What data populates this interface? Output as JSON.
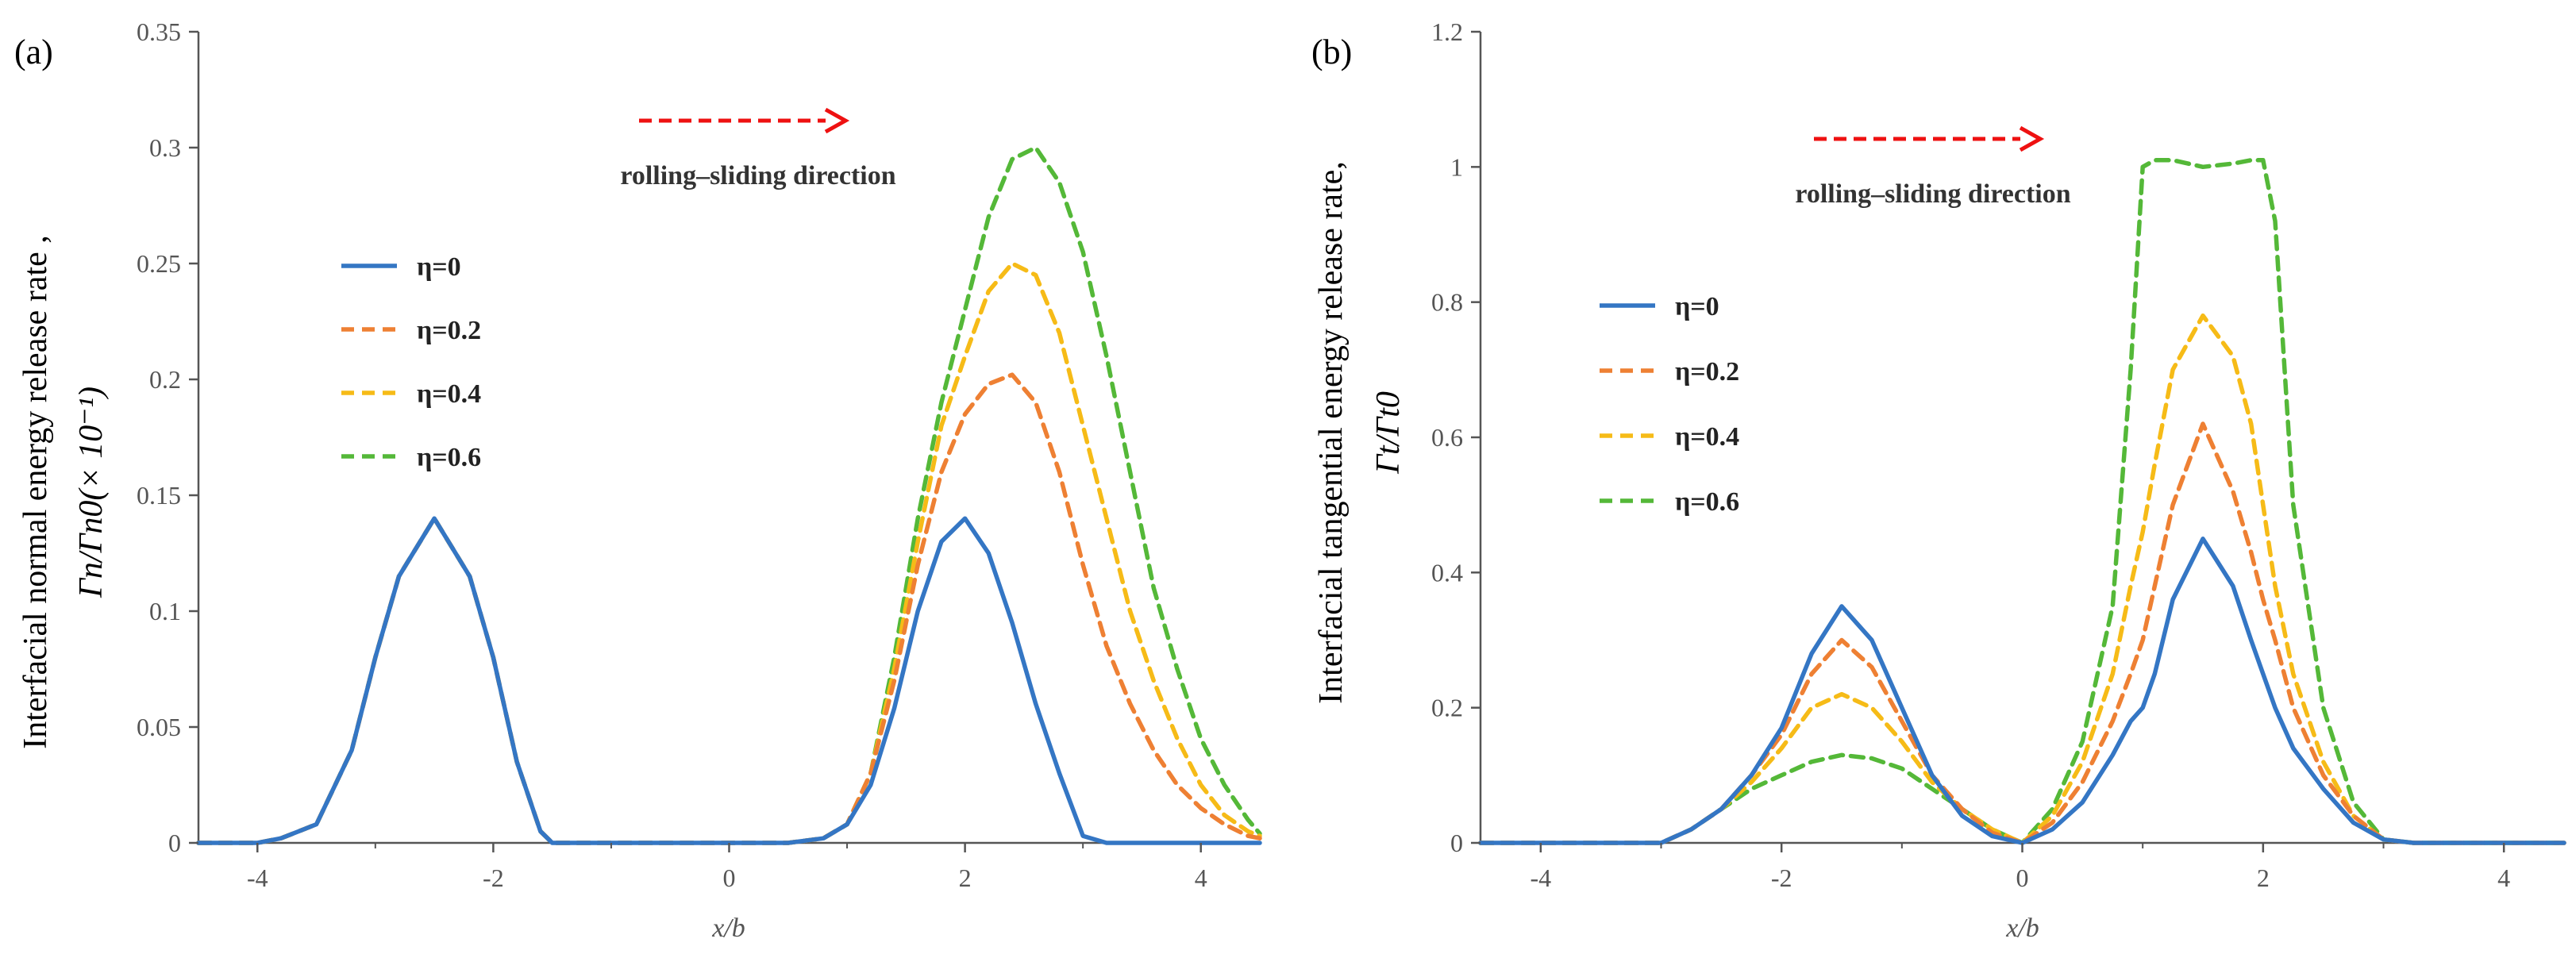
{
  "chart_data": [
    {
      "type": "line",
      "panel_label": "(a)",
      "ylabel_line1": "Interfacial normal energy release  rate ,",
      "ylabel_line2": "Γn/Γn0(× 10⁻¹)",
      "xlabel": "x/b",
      "xlim": [
        -4.5,
        4.5
      ],
      "ylim": [
        0,
        0.35
      ],
      "xticks": [
        -4,
        -2,
        0,
        2,
        4
      ],
      "xtick_labels": [
        "-4",
        "-2",
        "0",
        "2",
        "4"
      ],
      "yticks": [
        0,
        0.05,
        0.1,
        0.15,
        0.2,
        0.25,
        0.3,
        0.35
      ],
      "ytick_labels": [
        "0",
        "0.05",
        "0.1",
        "0.15",
        "0.2",
        "0.25",
        "0.3",
        "0.35"
      ],
      "annotation": "rolling–sliding direction",
      "legend_position": "upper-left",
      "x": [
        -4.5,
        -4.0,
        -3.8,
        -3.5,
        -3.2,
        -3.0,
        -2.8,
        -2.5,
        -2.2,
        -2.0,
        -1.8,
        -1.6,
        -1.5,
        -1.0,
        -0.5,
        0.0,
        0.5,
        0.8,
        1.0,
        1.2,
        1.4,
        1.6,
        1.8,
        2.0,
        2.2,
        2.4,
        2.6,
        2.8,
        3.0,
        3.2,
        3.4,
        3.6,
        3.8,
        4.0,
        4.2,
        4.4,
        4.5
      ],
      "series": [
        {
          "name": "η=0",
          "color": "#3476c4",
          "dash": "solid",
          "values": [
            0,
            0,
            0.002,
            0.008,
            0.04,
            0.08,
            0.115,
            0.14,
            0.115,
            0.08,
            0.035,
            0.005,
            0,
            0,
            0,
            0,
            0,
            0.002,
            0.008,
            0.025,
            0.058,
            0.1,
            0.13,
            0.14,
            0.125,
            0.095,
            0.06,
            0.03,
            0.003,
            0,
            0,
            0,
            0,
            0,
            0,
            0,
            0
          ]
        },
        {
          "name": "η=0.2",
          "color": "#ee8033",
          "dash": "dashed",
          "values": [
            0,
            0,
            0.002,
            0.008,
            0.04,
            0.08,
            0.115,
            0.14,
            0.115,
            0.08,
            0.035,
            0.005,
            0,
            0,
            0,
            0,
            0,
            0.002,
            0.008,
            0.03,
            0.07,
            0.12,
            0.16,
            0.185,
            0.198,
            0.202,
            0.19,
            0.16,
            0.12,
            0.085,
            0.06,
            0.04,
            0.025,
            0.015,
            0.008,
            0.003,
            0.002
          ]
        },
        {
          "name": "η=0.4",
          "color": "#f6bb17",
          "dash": "dashed",
          "values": [
            0,
            0,
            0.002,
            0.008,
            0.04,
            0.08,
            0.115,
            0.14,
            0.115,
            0.08,
            0.035,
            0.005,
            0,
            0,
            0,
            0,
            0,
            0.002,
            0.008,
            0.03,
            0.075,
            0.13,
            0.18,
            0.21,
            0.238,
            0.25,
            0.245,
            0.22,
            0.18,
            0.14,
            0.1,
            0.07,
            0.045,
            0.025,
            0.012,
            0.005,
            0.003
          ]
        },
        {
          "name": "η=0.6",
          "color": "#54b838",
          "dash": "dashed",
          "values": [
            0,
            0,
            0.002,
            0.008,
            0.04,
            0.08,
            0.115,
            0.14,
            0.115,
            0.08,
            0.035,
            0.005,
            0,
            0,
            0,
            0,
            0,
            0.002,
            0.008,
            0.03,
            0.08,
            0.14,
            0.19,
            0.23,
            0.27,
            0.295,
            0.3,
            0.285,
            0.255,
            0.21,
            0.16,
            0.11,
            0.075,
            0.045,
            0.025,
            0.01,
            0.004
          ]
        }
      ]
    },
    {
      "type": "line",
      "panel_label": "(b)",
      "ylabel_line1": "Interfacial tangential energy release rate,",
      "ylabel_line2": "Γt/Γt0",
      "xlabel": "x/b",
      "xlim": [
        -4.5,
        4.5
      ],
      "ylim": [
        0,
        1.2
      ],
      "xticks": [
        -4,
        -2,
        0,
        2,
        4
      ],
      "xtick_labels": [
        "-4",
        "-2",
        "0",
        "2",
        "4"
      ],
      "yticks": [
        0,
        0.2,
        0.4,
        0.6,
        0.8,
        1.0,
        1.2
      ],
      "ytick_labels": [
        "0",
        "0.2",
        "0.4",
        "0.6",
        "0.8",
        "1",
        "1.2"
      ],
      "annotation": "rolling–sliding direction",
      "legend_position": "upper-left",
      "x": [
        -4.5,
        -4.0,
        -3.5,
        -3.0,
        -2.75,
        -2.5,
        -2.25,
        -2.0,
        -1.75,
        -1.5,
        -1.25,
        -1.0,
        -0.75,
        -0.5,
        -0.25,
        0.0,
        0.25,
        0.5,
        0.75,
        0.9,
        1.0,
        1.1,
        1.25,
        1.5,
        1.75,
        1.9,
        2.0,
        2.1,
        2.25,
        2.5,
        2.75,
        3.0,
        3.25,
        3.5,
        4.0,
        4.5
      ],
      "series": [
        {
          "name": "η=0",
          "color": "#3476c4",
          "dash": "solid",
          "values": [
            0,
            0,
            0,
            0,
            0.02,
            0.05,
            0.1,
            0.17,
            0.28,
            0.35,
            0.3,
            0.2,
            0.1,
            0.04,
            0.01,
            0,
            0.02,
            0.06,
            0.13,
            0.18,
            0.2,
            0.25,
            0.36,
            0.45,
            0.38,
            0.3,
            0.25,
            0.2,
            0.14,
            0.08,
            0.03,
            0.005,
            0,
            0,
            0,
            0
          ]
        },
        {
          "name": "η=0.2",
          "color": "#ee8033",
          "dash": "dashed",
          "values": [
            0,
            0,
            0,
            0,
            0.02,
            0.05,
            0.1,
            0.16,
            0.25,
            0.3,
            0.26,
            0.18,
            0.1,
            0.05,
            0.015,
            0,
            0.03,
            0.09,
            0.18,
            0.25,
            0.3,
            0.38,
            0.5,
            0.62,
            0.52,
            0.43,
            0.36,
            0.3,
            0.2,
            0.1,
            0.04,
            0.005,
            0,
            0,
            0,
            0
          ]
        },
        {
          "name": "η=0.4",
          "color": "#f6bb17",
          "dash": "dashed",
          "values": [
            0,
            0,
            0,
            0,
            0.02,
            0.05,
            0.09,
            0.14,
            0.2,
            0.22,
            0.2,
            0.15,
            0.09,
            0.05,
            0.02,
            0,
            0.04,
            0.12,
            0.25,
            0.38,
            0.46,
            0.56,
            0.7,
            0.78,
            0.72,
            0.62,
            0.5,
            0.38,
            0.25,
            0.12,
            0.04,
            0.005,
            0,
            0,
            0,
            0
          ]
        },
        {
          "name": "η=0.6",
          "color": "#54b838",
          "dash": "dashed",
          "values": [
            0,
            0,
            0,
            0,
            0.02,
            0.05,
            0.08,
            0.1,
            0.12,
            0.13,
            0.125,
            0.11,
            0.08,
            0.05,
            0.02,
            0,
            0.05,
            0.15,
            0.35,
            0.7,
            1.0,
            1.01,
            1.01,
            1.0,
            1.005,
            1.01,
            1.01,
            0.92,
            0.5,
            0.2,
            0.06,
            0.005,
            0,
            0,
            0,
            0
          ]
        }
      ]
    }
  ]
}
